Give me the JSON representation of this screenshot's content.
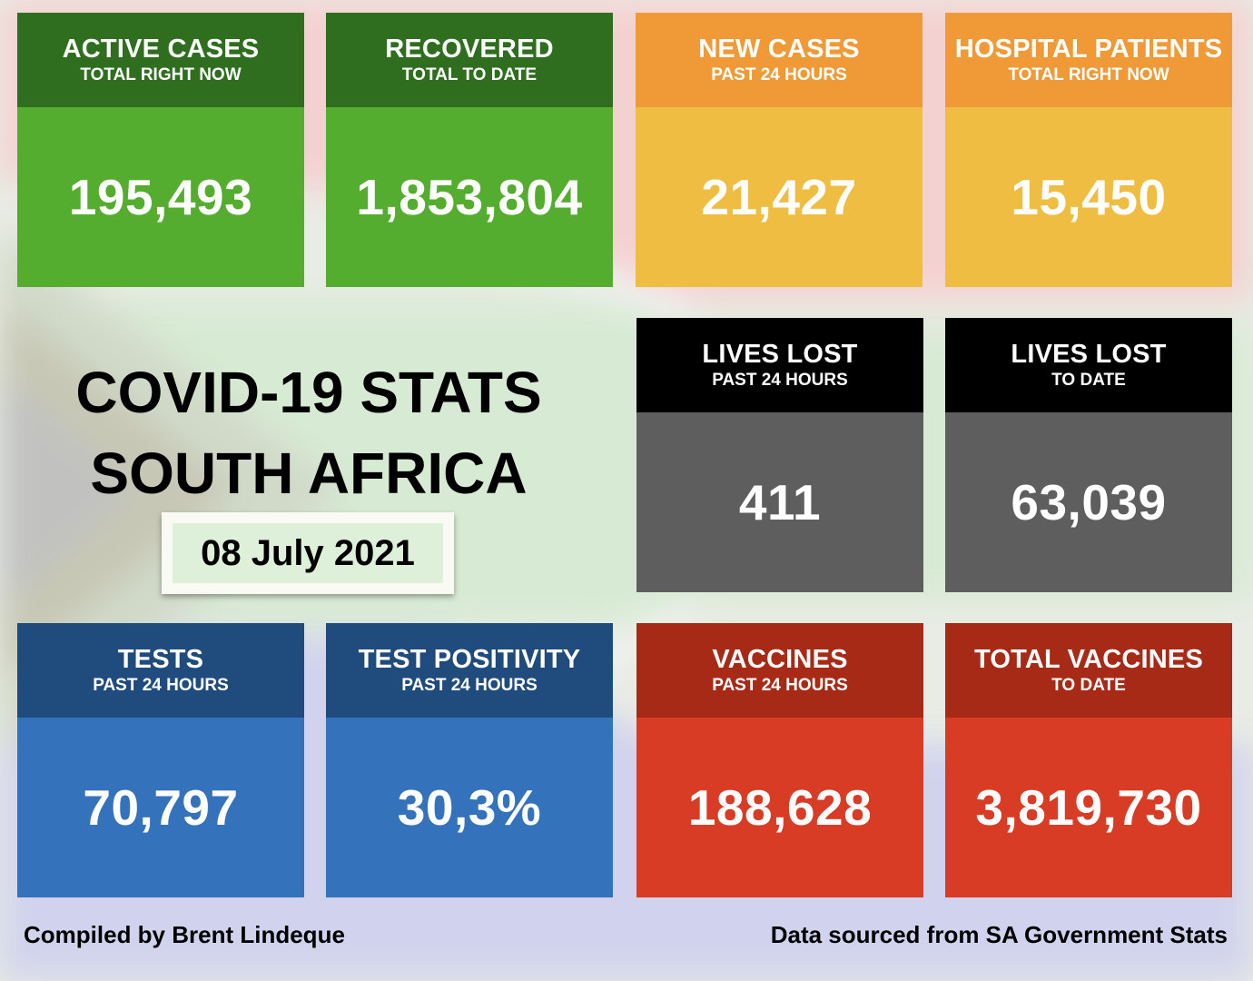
{
  "title": {
    "line1": "COVID-19 STATS",
    "line2": "SOUTH AFRICA",
    "date": "08 July 2021"
  },
  "cards": [
    {
      "id": "active-cases",
      "title": "ACTIVE CASES",
      "subtitle": "TOTAL RIGHT NOW",
      "value": "195,493",
      "head_color": "#2e6e1e",
      "body_color": "#55ad2f"
    },
    {
      "id": "recovered",
      "title": "RECOVERED",
      "subtitle": "TOTAL TO DATE",
      "value": "1,853,804",
      "head_color": "#2e6e1e",
      "body_color": "#55ad2f"
    },
    {
      "id": "new-cases",
      "title": "NEW CASES",
      "subtitle": "PAST 24 HOURS",
      "value": "21,427",
      "head_color": "#ef9a36",
      "body_color": "#efbd42"
    },
    {
      "id": "hospital-patients",
      "title": "HOSPITAL PATIENTS",
      "subtitle": "TOTAL RIGHT NOW",
      "value": "15,450",
      "head_color": "#ef9a36",
      "body_color": "#efbd42"
    },
    {
      "id": "lives-lost-24h",
      "title": "LIVES LOST",
      "subtitle": "PAST 24 HOURS",
      "value": "411",
      "head_color": "#000000",
      "body_color": "#5e5e5e"
    },
    {
      "id": "lives-lost-total",
      "title": "LIVES LOST",
      "subtitle": "TO DATE",
      "value": "63,039",
      "head_color": "#000000",
      "body_color": "#5e5e5e"
    },
    {
      "id": "tests",
      "title": "TESTS",
      "subtitle": "PAST 24 HOURS",
      "value": "70,797",
      "head_color": "#1f4b7d",
      "body_color": "#3473bb"
    },
    {
      "id": "test-positivity",
      "title": "TEST POSITIVITY",
      "subtitle": "PAST 24 HOURS",
      "value": "30,3%",
      "head_color": "#1f4b7d",
      "body_color": "#3473bb"
    },
    {
      "id": "vaccines",
      "title": "VACCINES",
      "subtitle": "PAST 24 HOURS",
      "value": "188,628",
      "head_color": "#a72a17",
      "body_color": "#d93c25"
    },
    {
      "id": "total-vaccines",
      "title": "TOTAL VACCINES",
      "subtitle": "TO DATE",
      "value": "3,819,730",
      "head_color": "#a72a17",
      "body_color": "#d93c25"
    }
  ],
  "footer": {
    "left": "Compiled by Brent Lindeque",
    "right": "Data sourced from SA Government Stats"
  }
}
